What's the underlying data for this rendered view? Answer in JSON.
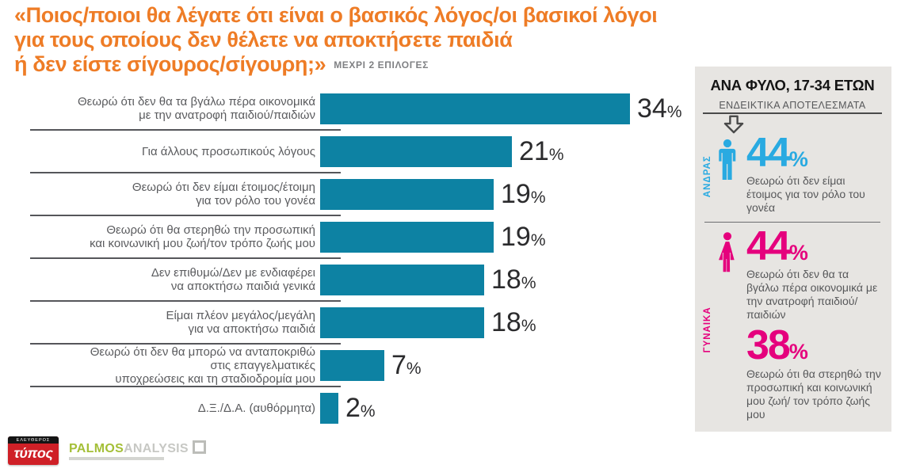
{
  "title": {
    "lines": [
      "«Ποιος/ποιοι θα λέγατε ότι είναι ο βασικός λόγος/οι βασικοί λόγοι",
      "για τους οποίους δεν θέλετε να αποκτήσετε παιδιά",
      "ή δεν είστε σίγουρος/σίγουρη;»"
    ],
    "note": "ΜΕΧΡΙ 2 ΕΠΙΛΟΓΕΣ",
    "color": "#ee7c26"
  },
  "chart_data": {
    "type": "bar",
    "orientation": "horizontal",
    "unit": "%",
    "bar_color": "#0d82a3",
    "value_color": "#2b2b2d",
    "xlim": [
      0,
      36
    ],
    "grid": false,
    "legend": false,
    "categories": [
      "Θεωρώ ότι δεν θα τα βγάλω πέρα οικονομικά με την ανατροφή παιδιού/παιδιών",
      "Για άλλους προσωπικούς λόγους",
      "Θεωρώ ότι δεν είμαι έτοιμος/έτοιμη για τον ρόλο του γονέα",
      "Θεωρώ ότι θα στερηθώ την προσωπική και κοινωνική μου ζωή/τον τρόπο ζωής μου",
      "Δεν επιθυμώ/Δεν με ενδιαφέρει να αποκτήσω παιδιά γενικά",
      "Είμαι πλέον μεγάλος/μεγάλη για να αποκτήσω παιδιά",
      "Θεωρώ ότι δεν θα μπορώ να ανταποκριθώ στις επαγγελματικές υποχρεώσεις και τη σταδιοδρομία μου",
      "Δ.Ξ./Δ.Α. (αυθόρμητα)"
    ],
    "label_lines": [
      [
        "Θεωρώ ότι δεν θα τα βγάλω πέρα οικονομικά",
        "με την ανατροφή παιδιού/παιδιών"
      ],
      [
        "Για άλλους προσωπικούς λόγους"
      ],
      [
        "Θεωρώ ότι δεν είμαι έτοιμος/έτοιμη",
        "για τον ρόλο του γονέα"
      ],
      [
        "Θεωρώ ότι θα στερηθώ την προσωπική",
        "και κοινωνική μου ζωή/τον τρόπο ζωής μου"
      ],
      [
        "Δεν επιθυμώ/Δεν με ενδιαφέρει",
        "να αποκτήσω παιδιά γενικά"
      ],
      [
        "Είμαι πλέον μεγάλος/μεγάλη",
        "για να αποκτήσω παιδιά"
      ],
      [
        "Θεωρώ ότι δεν θα μπορώ να ανταποκριθώ",
        "στις επαγγελματικές",
        "υποχρεώσεις και τη σταδιοδρομία μου"
      ],
      [
        "Δ.Ξ./Δ.Α. (αυθόρμητα)"
      ]
    ],
    "values": [
      34,
      21,
      19,
      19,
      18,
      18,
      7,
      2
    ]
  },
  "sidebar": {
    "header": "ΑΝΑ ΦΥΛΟ, 17-34 ΕΤΩΝ",
    "subheader": "ΕΝΔΕΙΚΤΙΚΑ ΑΠΟΤΕΛΕΣΜΑΤΑ",
    "bg": "#e7e5e2",
    "male": {
      "label": "ΑΝΔΡΑΣ",
      "color": "#29aae1",
      "value": "44",
      "unit": "%",
      "text": "Θεωρώ ότι δεν είμαι έτοιμος για τον ρόλο του γονέα"
    },
    "female": {
      "label": "ΓΥΝΑΙΚΑ",
      "color": "#e5007d",
      "stats": [
        {
          "value": "44",
          "unit": "%",
          "text": "Θεωρώ ότι δεν θα τα βγάλω πέρα οικονομικά με την ανατροφή παιδιού/ παιδιών"
        },
        {
          "value": "38",
          "unit": "%",
          "text": "Θεωρώ ότι θα στερηθώ την προσωπική και κοινωνική μου ζωή/ τον τρόπο ζωής μου"
        }
      ]
    }
  },
  "footer": {
    "typos_logo": {
      "top": "ΕΛΕΥΘΕΡΟΣ",
      "main": "τύπος"
    },
    "palmos_logo": {
      "part1": "PALMOS",
      "part2": "ANALYSIS"
    }
  }
}
